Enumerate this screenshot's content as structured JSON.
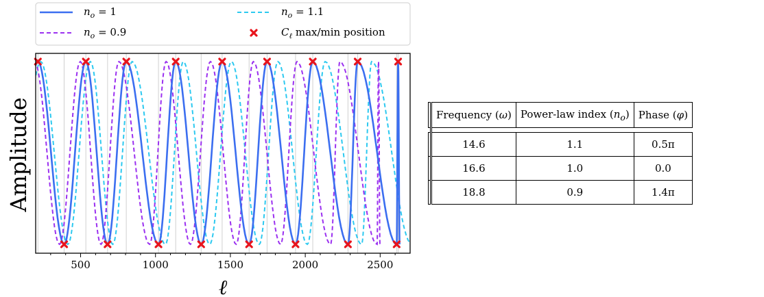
{
  "chart_data": {
    "type": "line",
    "xlabel": "ℓ",
    "ylabel": "Amplitude",
    "xlim": [
      200,
      2700
    ],
    "x_ticks": [
      500,
      1000,
      1500,
      2000,
      2500
    ],
    "x_tick_labels": [
      "500",
      "1000",
      "1500",
      "2000",
      "2500"
    ],
    "grid": "vertical lines at Cℓ max/min positions",
    "legend_position": "top, above plot",
    "series": [
      {
        "name": "n_o = 1",
        "legend_label": "n",
        "legend_sub": "o",
        "legend_eq": " = 1",
        "style": "solid",
        "color": "#3b6ef0",
        "omega": 16.6,
        "n_o": 1.0,
        "phase": 0.0
      },
      {
        "name": "n_o = 0.9",
        "legend_label": "n",
        "legend_sub": "o",
        "legend_eq": " = 0.9",
        "style": "dashed",
        "color": "#9b30f0",
        "omega": 18.8,
        "n_o": 0.9,
        "phase": 1.4
      },
      {
        "name": "n_o = 1.1",
        "legend_label": "n",
        "legend_sub": "o",
        "legend_eq": " = 1.1",
        "style": "dashed",
        "color": "#2cc9f0",
        "omega": 14.6,
        "n_o": 1.1,
        "phase": 0.5
      },
      {
        "name": "Cℓ max/min position",
        "legend_label": "C",
        "legend_sub": "ℓ",
        "legend_eq": " max/min position",
        "style": "marker",
        "color": "#e8141c"
      }
    ],
    "markers": {
      "max_x": [
        215,
        535,
        805,
        1135,
        1445,
        1745,
        2050,
        2350,
        2620
      ],
      "min_x": [
        390,
        680,
        1020,
        1305,
        1625,
        1935,
        2285,
        2610
      ]
    }
  },
  "table": {
    "headers": [
      "Frequency (ω)",
      "Power-law index (n",
      "o",
      ")",
      "Phase (φ)"
    ],
    "header_cells": [
      {
        "text": "Frequency (",
        "math": "ω",
        "tail": ")"
      },
      {
        "text": "Power-law index (",
        "math": "n",
        "sub": "o",
        "tail": ")"
      },
      {
        "text": "Phase (",
        "math": "φ",
        "tail": ")"
      }
    ],
    "rows": [
      [
        "14.6",
        "1.1",
        "0.5π"
      ],
      [
        "16.6",
        "1.0",
        "0.0"
      ],
      [
        "18.8",
        "0.9",
        "1.4π"
      ]
    ]
  }
}
